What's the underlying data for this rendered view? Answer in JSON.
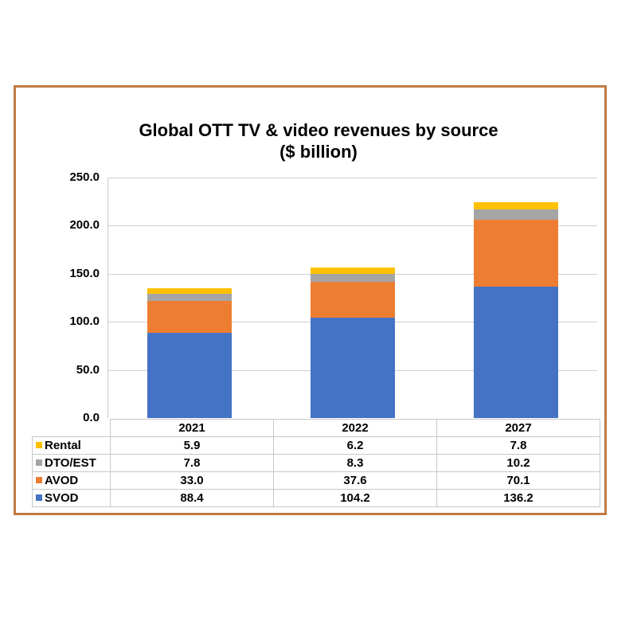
{
  "title": {
    "line1": "Global OTT TV & video revenues by source",
    "line2": "($ billion)"
  },
  "colors": {
    "frame": "#c07b45",
    "SVOD": "#4472c4",
    "AVOD": "#ed7d31",
    "DTO/EST": "#a5a5a5",
    "Rental": "#ffc000",
    "grid": "#d0d0d0"
  },
  "yaxis": {
    "ticks": [
      "250.0",
      "200.0",
      "150.0",
      "100.0",
      "50.0",
      "0.0"
    ]
  },
  "table": {
    "years": [
      "2021",
      "2022",
      "2027"
    ],
    "rows": [
      {
        "label": "Rental",
        "values": [
          "5.9",
          "6.2",
          "7.8"
        ]
      },
      {
        "label": "DTO/EST",
        "values": [
          "7.8",
          "8.3",
          "10.2"
        ]
      },
      {
        "label": "AVOD",
        "values": [
          "33.0",
          "37.6",
          "70.1"
        ]
      },
      {
        "label": "SVOD",
        "values": [
          "88.4",
          "104.2",
          "136.2"
        ]
      }
    ]
  },
  "chart_data": {
    "type": "bar",
    "stacked": true,
    "title": "Global OTT TV & video revenues by source ($ billion)",
    "xlabel": "",
    "ylabel": "",
    "ylim": [
      0,
      250
    ],
    "yticks": [
      0,
      50,
      100,
      150,
      200,
      250
    ],
    "grid": true,
    "legend_position": "data-table-bottom",
    "categories": [
      "2021",
      "2022",
      "2027"
    ],
    "series": [
      {
        "name": "SVOD",
        "color": "#4472c4",
        "values": [
          88.4,
          104.2,
          136.2
        ]
      },
      {
        "name": "AVOD",
        "color": "#ed7d31",
        "values": [
          33.0,
          37.6,
          70.1
        ]
      },
      {
        "name": "DTO/EST",
        "color": "#a5a5a5",
        "values": [
          7.8,
          8.3,
          10.2
        ]
      },
      {
        "name": "Rental",
        "color": "#ffc000",
        "values": [
          5.9,
          6.2,
          7.8
        ]
      }
    ]
  }
}
